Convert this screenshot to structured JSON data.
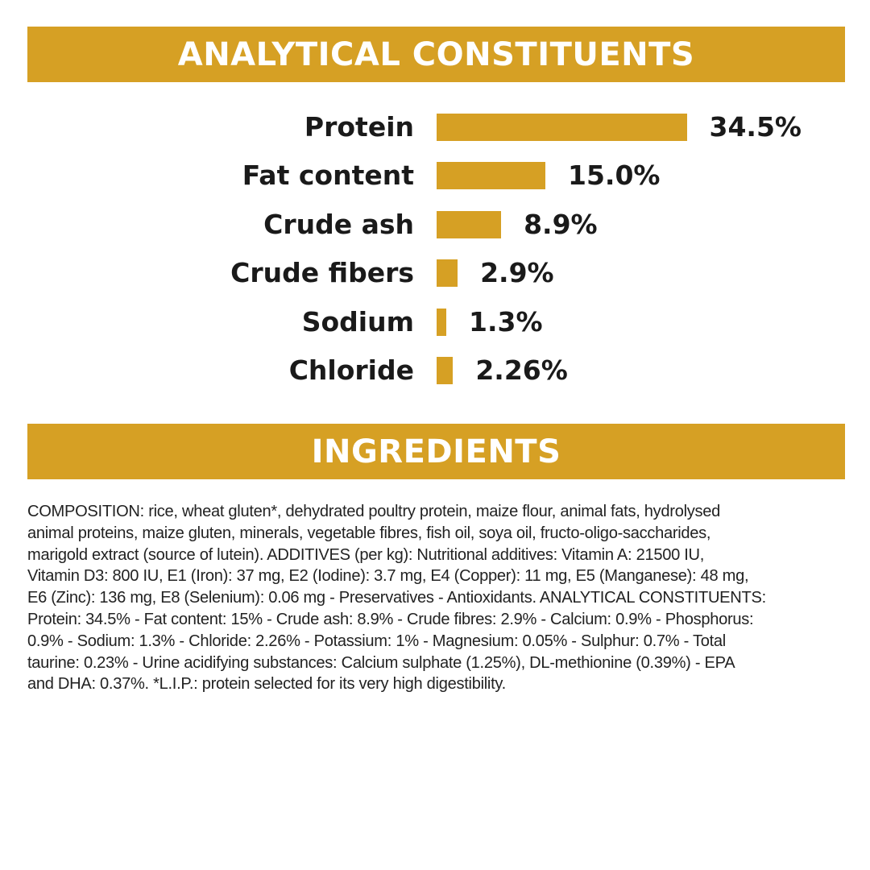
{
  "colors": {
    "accent": "#D6A024"
  },
  "sections": {
    "analytical_title": "ANALYTICAL CONSTITUENTS",
    "ingredients_title": "INGREDIENTS"
  },
  "chart_data": {
    "type": "bar",
    "orientation": "horizontal",
    "categories": [
      "Protein",
      "Fat content",
      "Crude ash",
      "Crude fibers",
      "Sodium",
      "Chloride"
    ],
    "values": [
      34.5,
      15.0,
      8.9,
      2.9,
      1.3,
      2.26
    ],
    "value_labels": [
      "34.5%",
      "15.0%",
      "8.9%",
      "2.9%",
      "1.3%",
      "2.26%"
    ],
    "unit": "%",
    "grid": false
  },
  "ingredients_lines": [
    "COMPOSITION: rice, wheat gluten*, dehydrated poultry protein, maize flour, animal fats, hydrolysed",
    "animal proteins, maize gluten, minerals, vegetable fibres, fish oil, soya oil, fructo-oligo-saccharides,",
    "marigold extract (source of lutein). ADDITIVES (per kg): Nutritional additives: Vitamin A: 21500 IU,",
    "Vitamin D3: 800 IU, E1 (Iron): 37 mg, E2 (Iodine): 3.7 mg, E4 (Copper): 11 mg, E5 (Manganese): 48 mg,",
    "E6 (Zinc): 136 mg, E8 (Selenium): 0.06 mg - Preservatives - Antioxidants. ANALYTICAL CONSTITUENTS:",
    "Protein: 34.5% - Fat content: 15% - Crude ash: 8.9% - Crude fibres: 2.9% - Calcium: 0.9% - Phosphorus:",
    "0.9% - Sodium: 1.3% - Chloride: 2.26% - Potassium: 1% - Magnesium: 0.05% - Sulphur: 0.7% - Total",
    "taurine: 0.23% - Urine acidifying substances: Calcium sulphate (1.25%), DL-methionine (0.39%) - EPA",
    "and DHA: 0.37%. *L.I.P.: protein selected for its very high digestibility."
  ]
}
